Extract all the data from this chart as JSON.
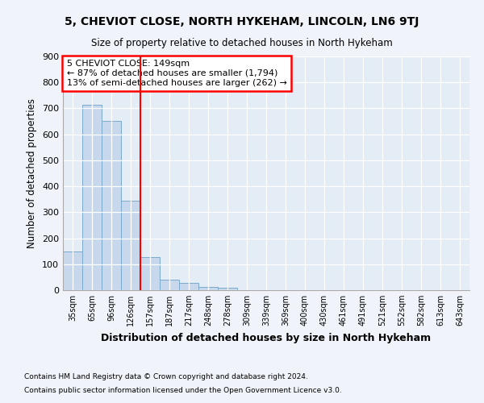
{
  "title": "5, CHEVIOT CLOSE, NORTH HYKEHAM, LINCOLN, LN6 9TJ",
  "subtitle": "Size of property relative to detached houses in North Hykeham",
  "xlabel": "Distribution of detached houses by size in North Hykeham",
  "ylabel": "Number of detached properties",
  "categories": [
    "35sqm",
    "65sqm",
    "96sqm",
    "126sqm",
    "157sqm",
    "187sqm",
    "217sqm",
    "248sqm",
    "278sqm",
    "309sqm",
    "339sqm",
    "369sqm",
    "400sqm",
    "430sqm",
    "461sqm",
    "491sqm",
    "521sqm",
    "552sqm",
    "582sqm",
    "613sqm",
    "643sqm"
  ],
  "values": [
    150,
    713,
    652,
    343,
    126,
    40,
    29,
    11,
    9,
    0,
    0,
    0,
    0,
    0,
    0,
    0,
    0,
    0,
    0,
    0,
    0
  ],
  "bar_color": "#c8d8ec",
  "bar_edge_color": "#7aaacc",
  "vline_x": 3.5,
  "vline_color": "red",
  "annotation_title": "5 CHEVIOT CLOSE: 149sqm",
  "annotation_line1": "← 87% of detached houses are smaller (1,794)",
  "annotation_line2": "13% of semi-detached houses are larger (262) →",
  "ylim": [
    0,
    900
  ],
  "yticks": [
    0,
    100,
    200,
    300,
    400,
    500,
    600,
    700,
    800,
    900
  ],
  "footnote1": "Contains HM Land Registry data © Crown copyright and database right 2024.",
  "footnote2": "Contains public sector information licensed under the Open Government Licence v3.0.",
  "bg_color": "#f0f4fa",
  "plot_bg_color": "#e4ecf5"
}
